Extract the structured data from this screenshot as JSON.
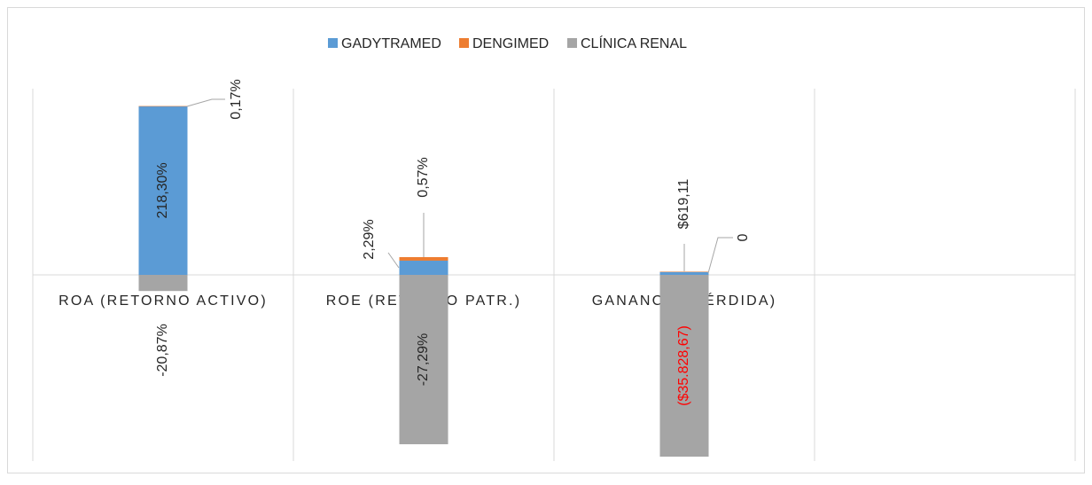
{
  "chart_data": {
    "type": "bar",
    "stacked": true,
    "categories": [
      "ROA (RETORNO ACTIVO)",
      "ROE (RETORNO PATR.)",
      "GANANCIA (PÉRDIDA)",
      null
    ],
    "ylim": [
      [
        -241,
        241
      ],
      [
        -30,
        30
      ],
      [
        -36700,
        36700
      ],
      [
        -1,
        1
      ]
    ],
    "grid": true,
    "legend": "top",
    "series": [
      {
        "name": "GADYTRAMED",
        "color": "#5b9bd5",
        "values": [
          218.3,
          2.29,
          619.11,
          null
        ],
        "value_labels": [
          "218,30%",
          "2,29%",
          "$619,11",
          null
        ]
      },
      {
        "name": "DENGIMED",
        "color": "#ed7d31",
        "values": [
          0.17,
          0.57,
          0,
          null
        ],
        "value_labels": [
          "0,17%",
          "0,57%",
          "0",
          null
        ]
      },
      {
        "name": "CLÍNICA RENAL",
        "color": "#a5a5a5",
        "values": [
          -20.87,
          -27.29,
          -35828.67,
          null
        ],
        "value_labels": [
          "-20,87%",
          "-27,29%",
          "($35.828,67)",
          null
        ]
      }
    ]
  }
}
